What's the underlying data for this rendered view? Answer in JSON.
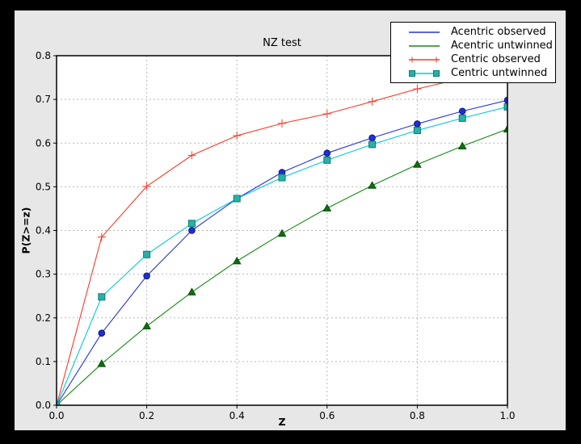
{
  "frame": {
    "background": "#000000"
  },
  "figure": {
    "background": "#e7e7e7",
    "plot_background": "#ffffff",
    "spine_color": "#000000"
  },
  "chart_data": {
    "type": "line",
    "title": "NZ test",
    "xlabel": "Z",
    "ylabel": "P(Z>=z)",
    "xlim": [
      0.0,
      1.0
    ],
    "ylim": [
      0.0,
      0.8
    ],
    "x_ticks": [
      "0.0",
      "0.2",
      "0.4",
      "0.6",
      "0.8",
      "1.0"
    ],
    "y_ticks": [
      "0.0",
      "0.1",
      "0.2",
      "0.3",
      "0.4",
      "0.5",
      "0.6",
      "0.7",
      "0.8"
    ],
    "grid": true,
    "grid_color": "#b9b9b9",
    "legend_position": "upper right",
    "x": [
      0.0,
      0.1,
      0.2,
      0.3,
      0.4,
      0.5,
      0.6,
      0.7,
      0.8,
      0.9,
      1.0
    ],
    "series": [
      {
        "name": "Acentric observed",
        "color": "#2233dd",
        "marker": "circle",
        "marker_fill": "#1e2fd6",
        "marker_edge": "#101080",
        "legend_end_markers": false,
        "values": [
          0.0,
          0.165,
          0.296,
          0.4,
          0.473,
          0.533,
          0.577,
          0.612,
          0.644,
          0.673,
          0.698
        ]
      },
      {
        "name": "Acentric untwinned",
        "color": "#128a12",
        "marker": "triangle",
        "marker_fill": "#0e6f0e",
        "marker_edge": "#074f07",
        "legend_end_markers": false,
        "values": [
          0.0,
          0.095,
          0.181,
          0.259,
          0.33,
          0.393,
          0.451,
          0.503,
          0.551,
          0.593,
          0.632
        ]
      },
      {
        "name": "Centric observed",
        "color": "#fa392b",
        "marker": "plus",
        "marker_fill": "#fa392b",
        "marker_edge": "#fa392b",
        "legend_end_markers": true,
        "values": [
          0.0,
          0.385,
          0.501,
          0.572,
          0.617,
          0.645,
          0.667,
          0.695,
          0.724,
          0.748,
          0.77
        ]
      },
      {
        "name": "Centric untwinned",
        "color": "#00c8d8",
        "marker": "square",
        "marker_fill": "#29b1a9",
        "marker_edge": "#0b7a72",
        "legend_end_markers": true,
        "values": [
          0.0,
          0.248,
          0.345,
          0.416,
          0.473,
          0.521,
          0.561,
          0.597,
          0.629,
          0.657,
          0.683
        ]
      }
    ]
  }
}
